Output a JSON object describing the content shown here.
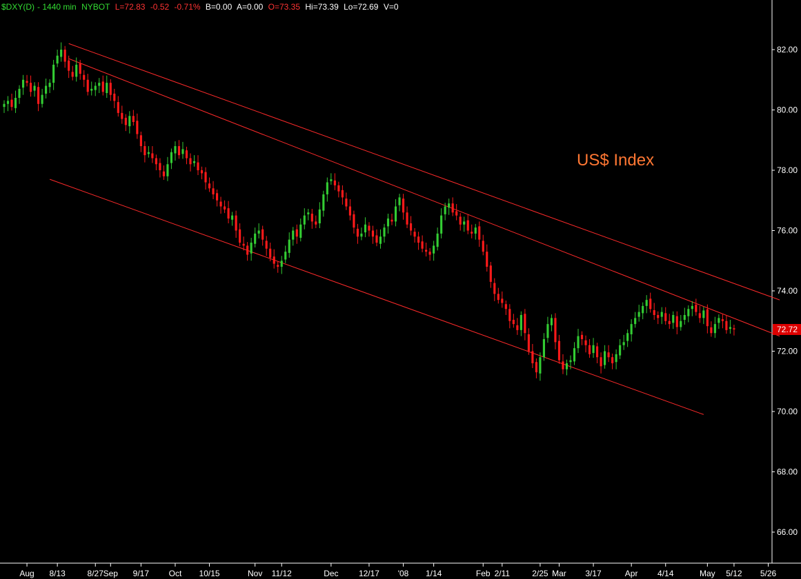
{
  "header": {
    "symbol": "$DXY(D)",
    "interval": "- 1440 min",
    "exchange": "NYBOT",
    "last": "L=72.83",
    "change": "-0.52",
    "change_pct": "-0.71%",
    "bid": "B=0.00",
    "ask": "A=0.00",
    "open": "O=73.35",
    "high": "Hi=73.39",
    "low": "Lo=72.69",
    "volume": "V=0"
  },
  "colors": {
    "background": "#000000",
    "up": "#33cc33",
    "down": "#ff1a1a",
    "trendline": "#ff2a2a",
    "annotation": "#ff7733",
    "axis_text": "#ffffff",
    "header_green": "#33dd33",
    "header_red": "#ff3333",
    "header_white": "#ffffff",
    "last_price_marker": "#dd0000"
  },
  "chart_data": {
    "type": "candlestick",
    "annotation": "US$ Index",
    "last_price_label": "72.72",
    "last_price": 72.72,
    "ylim": [
      65,
      83
    ],
    "y_ticks": [
      {
        "value": 82,
        "label": "82.00"
      },
      {
        "value": 80,
        "label": "80.00"
      },
      {
        "value": 78,
        "label": "78.00"
      },
      {
        "value": 76,
        "label": "76.00"
      },
      {
        "value": 74,
        "label": "74.00"
      },
      {
        "value": 72,
        "label": "72.00"
      },
      {
        "value": 70,
        "label": "70.00"
      },
      {
        "value": 68,
        "label": "68.00"
      },
      {
        "value": 66,
        "label": "66.00"
      }
    ],
    "x_range": [
      0,
      200
    ],
    "x_ticks": [
      {
        "index": 6,
        "label": "Aug"
      },
      {
        "index": 14,
        "label": "8/13"
      },
      {
        "index": 24,
        "label": "8/27"
      },
      {
        "index": 28,
        "label": "Sep"
      },
      {
        "index": 36,
        "label": "9/17"
      },
      {
        "index": 45,
        "label": "Oct"
      },
      {
        "index": 54,
        "label": "10/15"
      },
      {
        "index": 66,
        "label": "Nov"
      },
      {
        "index": 73,
        "label": "11/12"
      },
      {
        "index": 86,
        "label": "Dec"
      },
      {
        "index": 96,
        "label": "12/17"
      },
      {
        "index": 105,
        "label": "'08"
      },
      {
        "index": 113,
        "label": "1/14"
      },
      {
        "index": 126,
        "label": "Feb"
      },
      {
        "index": 131,
        "label": "2/11"
      },
      {
        "index": 141,
        "label": "2/25"
      },
      {
        "index": 146,
        "label": "Mar"
      },
      {
        "index": 155,
        "label": "3/17"
      },
      {
        "index": 165,
        "label": "Apr"
      },
      {
        "index": 174,
        "label": "4/14"
      },
      {
        "index": 185,
        "label": "May"
      },
      {
        "index": 192,
        "label": "5/12"
      },
      {
        "index": 201,
        "label": "5/26"
      }
    ],
    "trendlines": [
      {
        "name": "channel-upper",
        "x1": 17,
        "y1": 82.2,
        "x2": 204,
        "y2": 73.7
      },
      {
        "name": "channel-middle",
        "x1": 17,
        "y1": 81.7,
        "x2": 204,
        "y2": 72.5
      },
      {
        "name": "channel-lower",
        "x1": 12,
        "y1": 77.7,
        "x2": 184,
        "y2": 69.9
      }
    ],
    "closes": [
      80.2,
      80.3,
      80.1,
      80.4,
      80.7,
      81.0,
      80.9,
      80.6,
      80.8,
      80.2,
      80.5,
      80.8,
      80.9,
      81.5,
      81.8,
      82.0,
      81.6,
      81.3,
      81.1,
      81.5,
      81.2,
      81.0,
      80.6,
      80.7,
      80.8,
      80.9,
      80.6,
      80.9,
      80.5,
      80.3,
      79.9,
      79.7,
      79.5,
      79.8,
      79.6,
      79.2,
      78.8,
      78.5,
      78.6,
      78.4,
      78.2,
      78.0,
      77.8,
      78.2,
      78.6,
      78.8,
      78.5,
      78.7,
      78.4,
      78.2,
      78.3,
      78.0,
      77.9,
      77.6,
      77.4,
      77.2,
      77.0,
      76.8,
      76.7,
      76.4,
      76.5,
      76.0,
      75.6,
      75.5,
      75.2,
      75.6,
      75.9,
      76.0,
      75.7,
      75.4,
      75.1,
      74.9,
      74.8,
      75.0,
      75.3,
      75.7,
      76.0,
      75.8,
      76.2,
      76.5,
      76.6,
      76.3,
      76.2,
      76.7,
      77.2,
      77.6,
      77.7,
      77.5,
      77.3,
      77.1,
      76.8,
      76.5,
      76.1,
      75.8,
      75.9,
      76.2,
      76.0,
      75.8,
      75.6,
      75.8,
      76.1,
      76.4,
      76.3,
      76.8,
      77.1,
      76.6,
      76.2,
      76.0,
      75.8,
      75.6,
      75.4,
      75.3,
      75.2,
      75.5,
      75.9,
      76.5,
      76.8,
      76.9,
      76.6,
      76.5,
      76.2,
      76.3,
      76.0,
      75.9,
      76.1,
      75.7,
      75.3,
      74.8,
      74.3,
      73.9,
      73.7,
      73.6,
      73.4,
      73.0,
      72.9,
      72.7,
      73.2,
      72.6,
      72.0,
      71.6,
      71.3,
      71.8,
      72.4,
      72.9,
      73.1,
      72.3,
      71.7,
      71.4,
      71.6,
      71.7,
      72.1,
      72.5,
      72.4,
      72.2,
      71.9,
      72.2,
      71.8,
      71.5,
      72.0,
      71.8,
      71.6,
      71.9,
      72.2,
      72.3,
      72.6,
      72.9,
      73.1,
      73.3,
      73.5,
      73.7,
      73.4,
      73.2,
      73.1,
      73.3,
      73.0,
      72.9,
      73.2,
      72.8,
      73.0,
      73.2,
      73.4,
      73.5,
      73.3,
      73.1,
      73.35,
      72.83,
      72.6,
      72.9,
      73.1,
      73.0,
      72.7,
      72.8,
      72.72
    ],
    "time_axis": {
      "first_month": "Aug",
      "last_label": "5/26"
    }
  }
}
